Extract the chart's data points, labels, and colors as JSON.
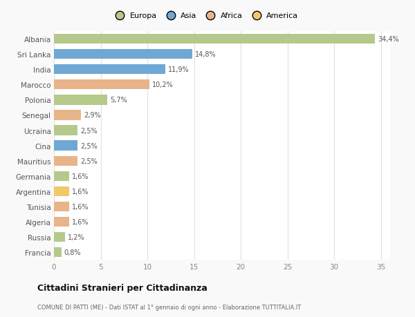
{
  "countries": [
    "Albania",
    "Sri Lanka",
    "India",
    "Marocco",
    "Polonia",
    "Senegal",
    "Ucraina",
    "Cina",
    "Mauritius",
    "Germania",
    "Argentina",
    "Tunisia",
    "Algeria",
    "Russia",
    "Francia"
  ],
  "values": [
    34.4,
    14.8,
    11.9,
    10.2,
    5.7,
    2.9,
    2.5,
    2.5,
    2.5,
    1.6,
    1.6,
    1.6,
    1.6,
    1.2,
    0.8
  ],
  "labels": [
    "34,4%",
    "14,8%",
    "11,9%",
    "10,2%",
    "5,7%",
    "2,9%",
    "2,5%",
    "2,5%",
    "2,5%",
    "1,6%",
    "1,6%",
    "1,6%",
    "1,6%",
    "1,2%",
    "0,8%"
  ],
  "colors": [
    "#b5c98a",
    "#6fa8d4",
    "#6fa8d4",
    "#e8b48a",
    "#b5c98a",
    "#e8b48a",
    "#b5c98a",
    "#6fa8d4",
    "#e8b48a",
    "#b5c98a",
    "#f0c96a",
    "#e8b48a",
    "#e8b48a",
    "#b5c98a",
    "#b5c98a"
  ],
  "legend_labels": [
    "Europa",
    "Asia",
    "Africa",
    "America"
  ],
  "legend_colors": [
    "#b5c98a",
    "#6fa8d4",
    "#e8b48a",
    "#f0c96a"
  ],
  "xlim": [
    0,
    36
  ],
  "xticks": [
    0,
    5,
    10,
    15,
    20,
    25,
    30,
    35
  ],
  "title": "Cittadini Stranieri per Cittadinanza",
  "subtitle": "COMUNE DI PATTI (ME) - Dati ISTAT al 1° gennaio di ogni anno - Elaborazione TUTTITALIA.IT",
  "background_color": "#f9f9f9",
  "plot_background": "#ffffff",
  "grid_color": "#e0e0e0"
}
